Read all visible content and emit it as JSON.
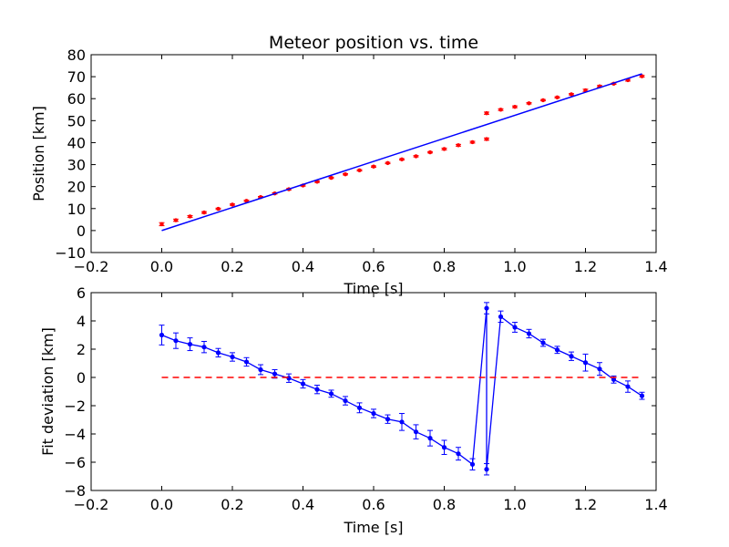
{
  "chart_data": [
    {
      "type": "scatter",
      "title": "Meteor position vs. time",
      "xlabel": "Time [s]",
      "ylabel": "Position [km]",
      "xlim": [
        -0.2,
        1.4
      ],
      "ylim": [
        -10,
        80
      ],
      "xticks": [
        "−0.2",
        "0.0",
        "0.2",
        "0.4",
        "0.6",
        "0.8",
        "1.0",
        "1.2",
        "1.4"
      ],
      "yticks": [
        "−10",
        "0",
        "10",
        "20",
        "30",
        "40",
        "50",
        "60",
        "70",
        "80"
      ],
      "grid": false,
      "series": [
        {
          "kind": "points_with_errorbars",
          "color": "#ff0000",
          "x": [
            0.0,
            0.04,
            0.08,
            0.12,
            0.16,
            0.2,
            0.24,
            0.28,
            0.32,
            0.36,
            0.4,
            0.44,
            0.48,
            0.52,
            0.56,
            0.6,
            0.64,
            0.68,
            0.72,
            0.76,
            0.8,
            0.84,
            0.88,
            0.92,
            0.92,
            0.96,
            1.0,
            1.04,
            1.08,
            1.12,
            1.16,
            1.2,
            1.24,
            1.28,
            1.32,
            1.36
          ],
          "y": [
            2.9,
            4.7,
            6.4,
            8.2,
            9.9,
            11.8,
            13.5,
            15.2,
            16.9,
            18.8,
            20.5,
            22.2,
            24.0,
            25.6,
            27.4,
            29.1,
            30.7,
            32.4,
            33.8,
            35.6,
            37.1,
            38.8,
            40.2,
            41.6,
            53.4,
            55.0,
            56.3,
            57.9,
            59.3,
            60.6,
            62.0,
            63.8,
            65.6,
            66.8,
            68.4,
            70.2
          ],
          "yerr": [
            0.7,
            0.5,
            0.4,
            0.4,
            0.3,
            0.3,
            0.3,
            0.3,
            0.3,
            0.3,
            0.3,
            0.3,
            0.3,
            0.3,
            0.3,
            0.3,
            0.3,
            0.3,
            0.3,
            0.3,
            0.4,
            0.4,
            0.4,
            0.5,
            0.5,
            0.4,
            0.4,
            0.3,
            0.3,
            0.3,
            0.3,
            0.5,
            0.4,
            0.3,
            0.4,
            0.4
          ]
        },
        {
          "kind": "fit_line",
          "color": "#0000ff",
          "x": [
            0.0,
            1.36
          ],
          "y": [
            0.0,
            71.3
          ]
        }
      ]
    },
    {
      "type": "line",
      "title": "",
      "xlabel": "Time [s]",
      "ylabel": "Fit deviation [km]",
      "xlim": [
        -0.2,
        1.4
      ],
      "ylim": [
        -8,
        6
      ],
      "xticks": [
        "−0.2",
        "0.0",
        "0.2",
        "0.4",
        "0.6",
        "0.8",
        "1.0",
        "1.2",
        "1.4"
      ],
      "yticks": [
        "−8",
        "−6",
        "−4",
        "−2",
        "0",
        "2",
        "4",
        "6"
      ],
      "grid": false,
      "series": [
        {
          "kind": "line_with_errorbars",
          "color": "#0000ff",
          "x": [
            0.0,
            0.04,
            0.08,
            0.12,
            0.16,
            0.2,
            0.24,
            0.28,
            0.32,
            0.36,
            0.4,
            0.44,
            0.48,
            0.52,
            0.56,
            0.6,
            0.64,
            0.68,
            0.72,
            0.76,
            0.8,
            0.84,
            0.88,
            0.92,
            0.92,
            0.96,
            1.0,
            1.04,
            1.08,
            1.12,
            1.16,
            1.2,
            1.24,
            1.28,
            1.32,
            1.36
          ],
          "y": [
            3.0,
            2.6,
            2.35,
            2.15,
            1.75,
            1.45,
            1.1,
            0.55,
            0.25,
            -0.05,
            -0.45,
            -0.85,
            -1.15,
            -1.65,
            -2.15,
            -2.55,
            -2.95,
            -3.15,
            -3.85,
            -4.3,
            -4.95,
            -5.4,
            -6.15,
            4.9,
            -6.5,
            4.3,
            3.55,
            3.1,
            2.45,
            1.95,
            1.5,
            1.05,
            0.6,
            -0.15,
            -0.65,
            -1.3
          ],
          "yerr": [
            0.7,
            0.55,
            0.45,
            0.4,
            0.3,
            0.3,
            0.3,
            0.35,
            0.3,
            0.3,
            0.3,
            0.3,
            0.25,
            0.3,
            0.35,
            0.3,
            0.3,
            0.6,
            0.5,
            0.55,
            0.5,
            0.45,
            0.4,
            0.4,
            0.4,
            0.4,
            0.35,
            0.3,
            0.25,
            0.25,
            0.3,
            0.6,
            0.45,
            0.25,
            0.4,
            0.25
          ]
        },
        {
          "kind": "reference_line",
          "color": "#ff0000",
          "style": "dashed",
          "x": [
            0.0,
            1.36
          ],
          "y": [
            0,
            0
          ]
        }
      ]
    }
  ]
}
